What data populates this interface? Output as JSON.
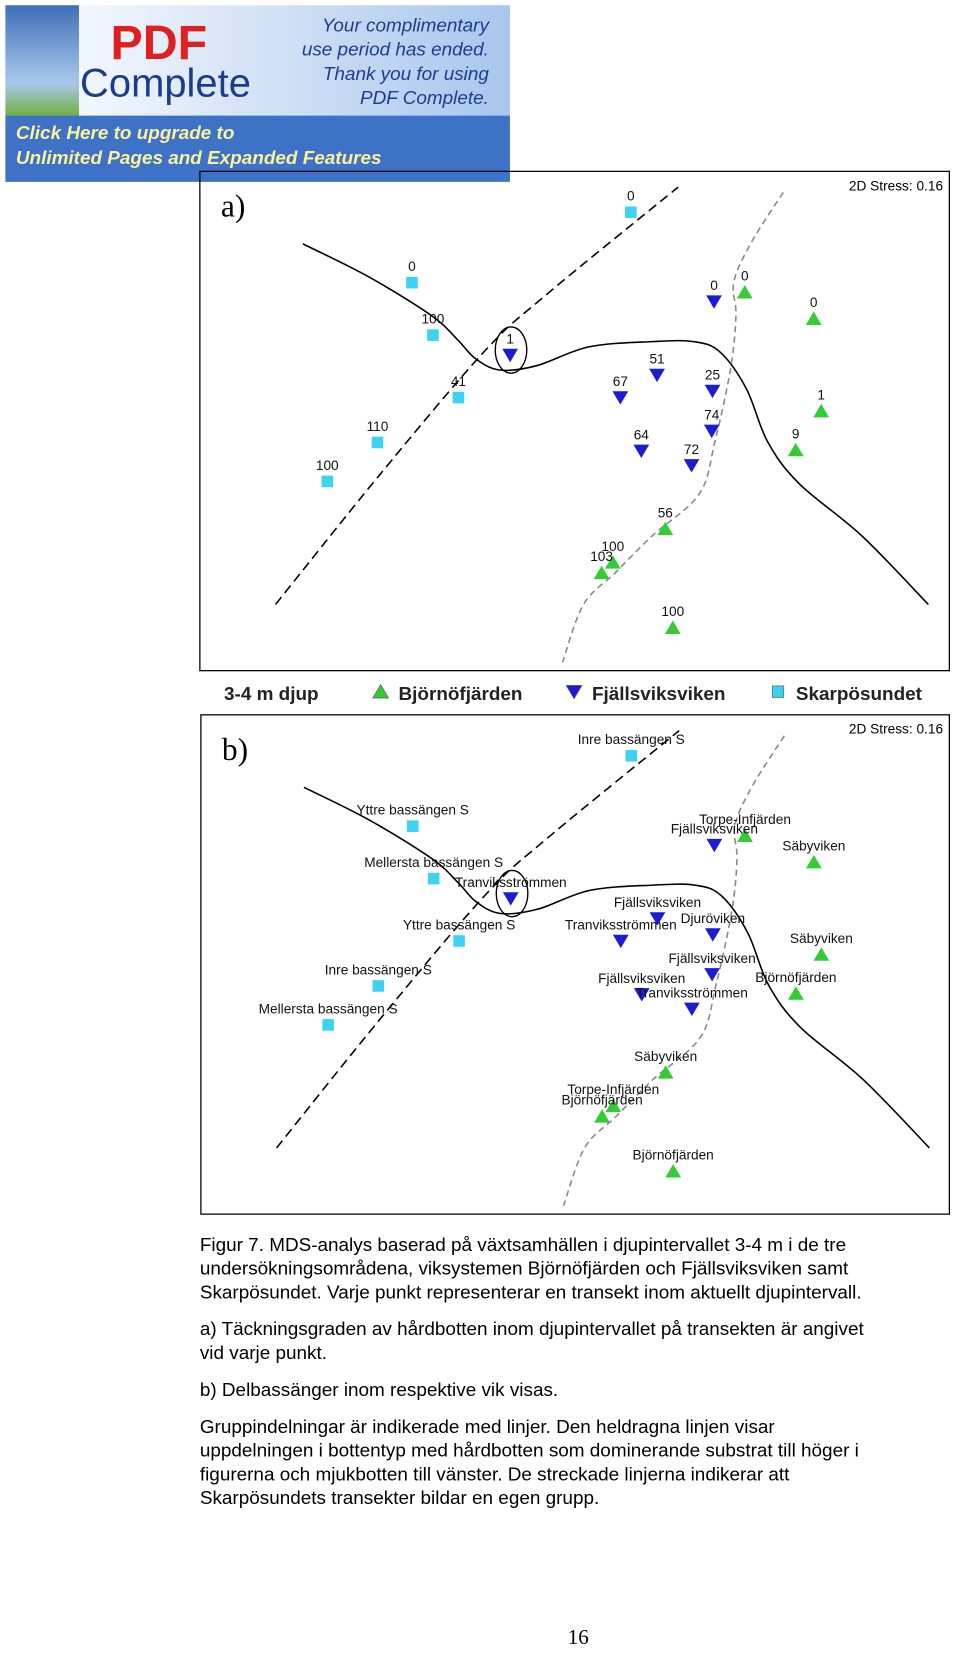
{
  "banner": {
    "brand_top": "PDF",
    "brand_bottom": "Complete",
    "message": [
      "Your complimentary",
      "use period has ended.",
      "Thank you for using",
      "PDF Complete."
    ],
    "link": [
      "Click Here to upgrade to",
      "Unlimited Pages and Expanded Features"
    ]
  },
  "legend": {
    "title": "3-4 m djup"
  },
  "chart_data": [
    {
      "type": "scatter",
      "panel_label": "a)",
      "stress": "2D Stress: 0.16",
      "xlim": [
        0,
        100
      ],
      "ylim": [
        0,
        100
      ],
      "series": [
        {
          "name": "Björnöfjärden",
          "color": "#33cc33",
          "marker": "triangle-up",
          "x": [
            72.7,
            81.9,
            82.9,
            79.5,
            62.1,
            55.1,
            53.6,
            63.1
          ],
          "values": [
            75.8,
            70.5,
            52.0,
            44.2,
            28.4,
            21.7,
            19.6,
            8.6
          ],
          "labels": [
            0,
            0,
            1,
            9,
            56,
            100,
            103,
            100
          ]
        },
        {
          "name": "Fjällsviksviken",
          "color": "#1c1cd0",
          "marker": "triangle-down",
          "x": [
            41.4,
            68.6,
            61.0,
            56.1,
            68.4,
            68.3,
            58.9,
            65.6
          ],
          "values": [
            63.2,
            73.9,
            59.2,
            54.7,
            56.0,
            48.0,
            44.0,
            41.1
          ],
          "labels": [
            1,
            0,
            51,
            67,
            25,
            74,
            64,
            72
          ]
        },
        {
          "name": "Skarpösundet",
          "color": "#3cd2f0",
          "marker": "square",
          "x": [
            57.5,
            28.3,
            31.1,
            34.5,
            23.7,
            17.0
          ],
          "values": [
            91.8,
            77.7,
            67.2,
            54.7,
            45.7,
            37.9
          ],
          "labels": [
            0,
            0,
            100,
            41,
            110,
            100
          ]
        }
      ]
    },
    {
      "type": "scatter",
      "panel_label": "b)",
      "stress": "2D Stress: 0.16",
      "xlim": [
        0,
        100
      ],
      "ylim": [
        0,
        100
      ],
      "series": [
        {
          "name": "Björnöfjärden",
          "color": "#33cc33",
          "marker": "triangle-up",
          "x": [
            72.7,
            81.9,
            82.9,
            79.5,
            62.1,
            55.1,
            53.6,
            63.1
          ],
          "values": [
            75.8,
            70.5,
            52.0,
            44.2,
            28.4,
            21.7,
            19.6,
            8.6
          ],
          "labels": [
            "Torpe-Infjärden",
            "Säbyviken",
            "Säbyviken",
            "Björnöfjärden",
            "Säbyviken",
            "Torpe-Infjärden",
            "Björnöfjärden",
            "Björnöfjärden"
          ]
        },
        {
          "name": "Fjällsviksviken",
          "color": "#1c1cd0",
          "marker": "triangle-down",
          "x": [
            41.4,
            68.6,
            61.0,
            56.1,
            68.4,
            68.3,
            58.9,
            65.6
          ],
          "values": [
            63.2,
            73.9,
            59.2,
            54.7,
            56.0,
            48.0,
            44.0,
            41.1
          ],
          "labels": [
            "Tranviksströmmen",
            "Fjällsviksviken",
            "Fjällsviksviken",
            "Tranviksströmmen",
            "Djuröviken",
            "Fjällsviksviken",
            "Fjällsviksviken",
            "Tranviksströmmen"
          ]
        },
        {
          "name": "Skarpösundet",
          "color": "#3cd2f0",
          "marker": "square",
          "x": [
            57.5,
            28.3,
            31.1,
            34.5,
            23.7,
            17.0
          ],
          "values": [
            91.8,
            77.7,
            67.2,
            54.7,
            45.7,
            37.9
          ],
          "labels": [
            "Inre bassängen S",
            "Yttre bassängen S",
            "Mellersta bassängen S",
            "Yttre bassängen S",
            "Inre bassängen S",
            "Mellersta bassängen S"
          ]
        }
      ]
    }
  ],
  "caption": [
    [
      "Figur 7. MDS-analys baserad på växtsamhällen i djupintervallet 3-4 m i de tre",
      "undersökningsområdena, viksystemen Björnöfjärden och Fjällsviksviken samt",
      "Skarpösundet. Varje punkt representerar en transekt inom aktuellt djupintervall."
    ],
    [
      "a) Täckningsgraden av hårdbotten inom djupintervallet på transekten är angivet",
      "vid varje punkt."
    ],
    [
      "b) Delbassänger inom respektive vik visas."
    ],
    [
      "Gruppindelningar är indikerade med linjer. Den heldragna linjen visar",
      "uppdelningen i bottentyp med hårdbotten som dominerande substrat till höger i",
      "figurerna och mjukbotten till vänster. De streckade linjerna indikerar att",
      "Skarpösundets transekter bildar en egen grupp."
    ]
  ],
  "page_number": "16"
}
